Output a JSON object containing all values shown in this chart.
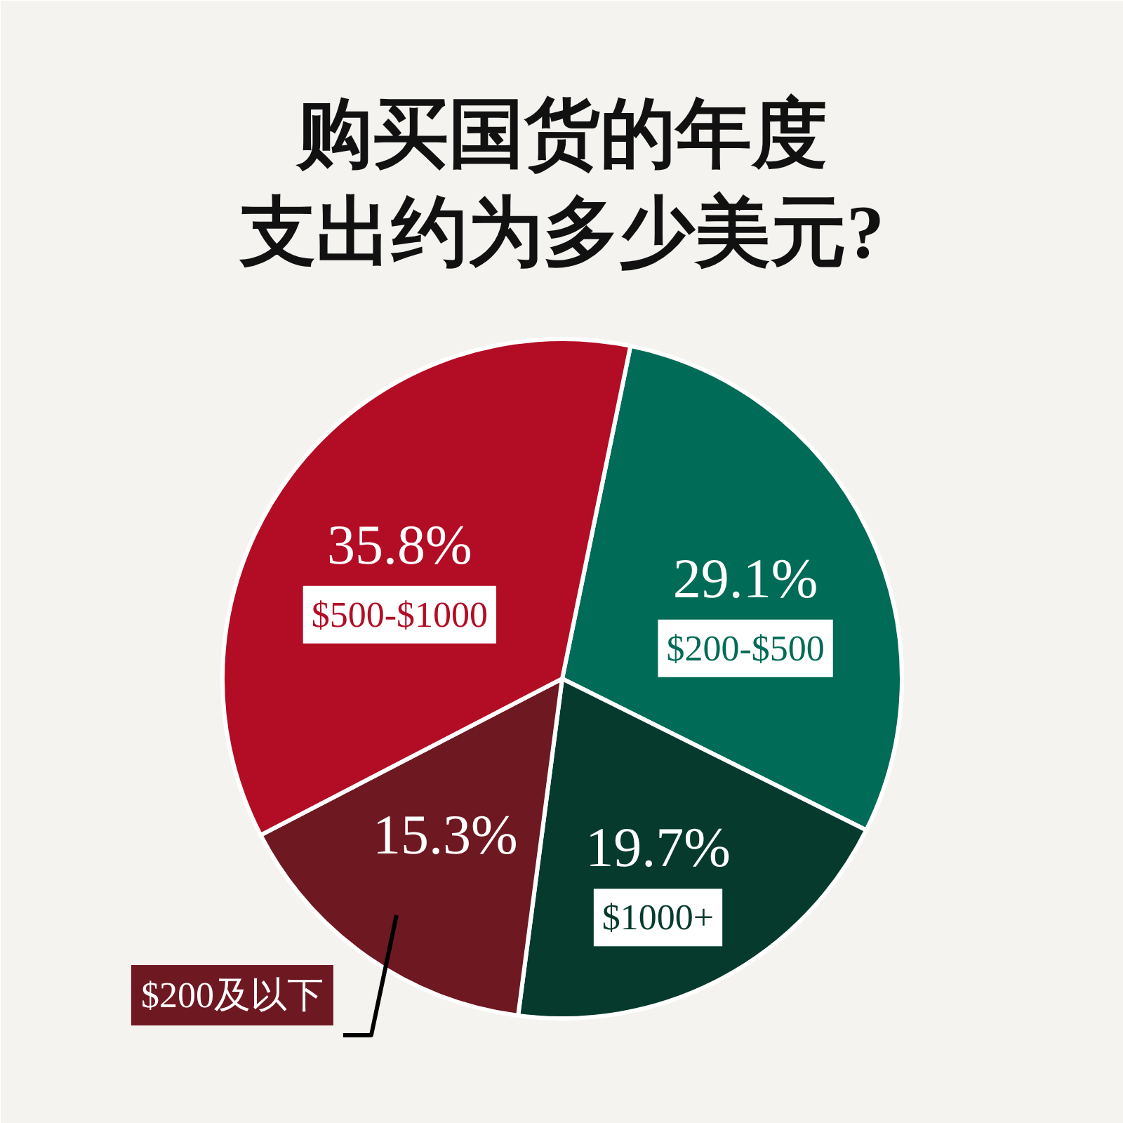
{
  "chart_data": {
    "type": "pie",
    "title": "购买国货的年度支出约为多少美元?",
    "categories": [
      "$200-$500",
      "$1000+",
      "$200及以下",
      "$500-$1000"
    ],
    "values": [
      29.1,
      19.7,
      15.3,
      35.8
    ],
    "colors": [
      "#006b56",
      "#053a2d",
      "#6e1822",
      "#b30c25"
    ],
    "value_labels": [
      "29.1%",
      "19.7%",
      "15.3%",
      "35.8%"
    ]
  }
}
